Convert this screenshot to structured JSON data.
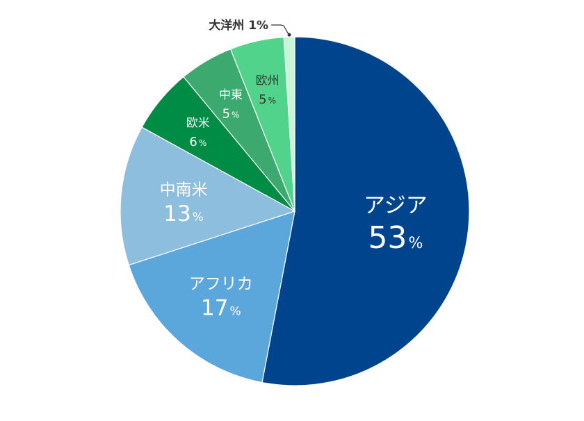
{
  "chart_data": {
    "type": "pie",
    "slices": [
      {
        "label": "アジア",
        "value": 53,
        "display": "53",
        "color": "#00448e",
        "text_color": "#ffffff",
        "placement": "inside-large"
      },
      {
        "label": "アフリカ",
        "value": 17,
        "display": "17",
        "color": "#5ba7dc",
        "text_color": "#ffffff",
        "placement": "inside-medium"
      },
      {
        "label": "中南米",
        "value": 13,
        "display": "13",
        "color": "#8ebedd",
        "text_color": "#ffffff",
        "placement": "inside-medium"
      },
      {
        "label": "欧米",
        "value": 6,
        "display": "6",
        "color": "#008c45",
        "text_color": "#ffffff",
        "placement": "inside-small"
      },
      {
        "label": "中東",
        "value": 5,
        "display": "5",
        "color": "#3ca96e",
        "text_color": "#ffffff",
        "placement": "inside-small"
      },
      {
        "label": "欧州",
        "value": 5,
        "display": "5",
        "color": "#52d38b",
        "text_color": "#333333",
        "placement": "inside-small"
      },
      {
        "label": "大洋州",
        "value": 1,
        "display": "1",
        "color": "#c8f5d8",
        "text_color": "#333333",
        "placement": "outside"
      }
    ],
    "percent_sign": "%",
    "start": "12 o'clock",
    "direction": "clockwise"
  }
}
